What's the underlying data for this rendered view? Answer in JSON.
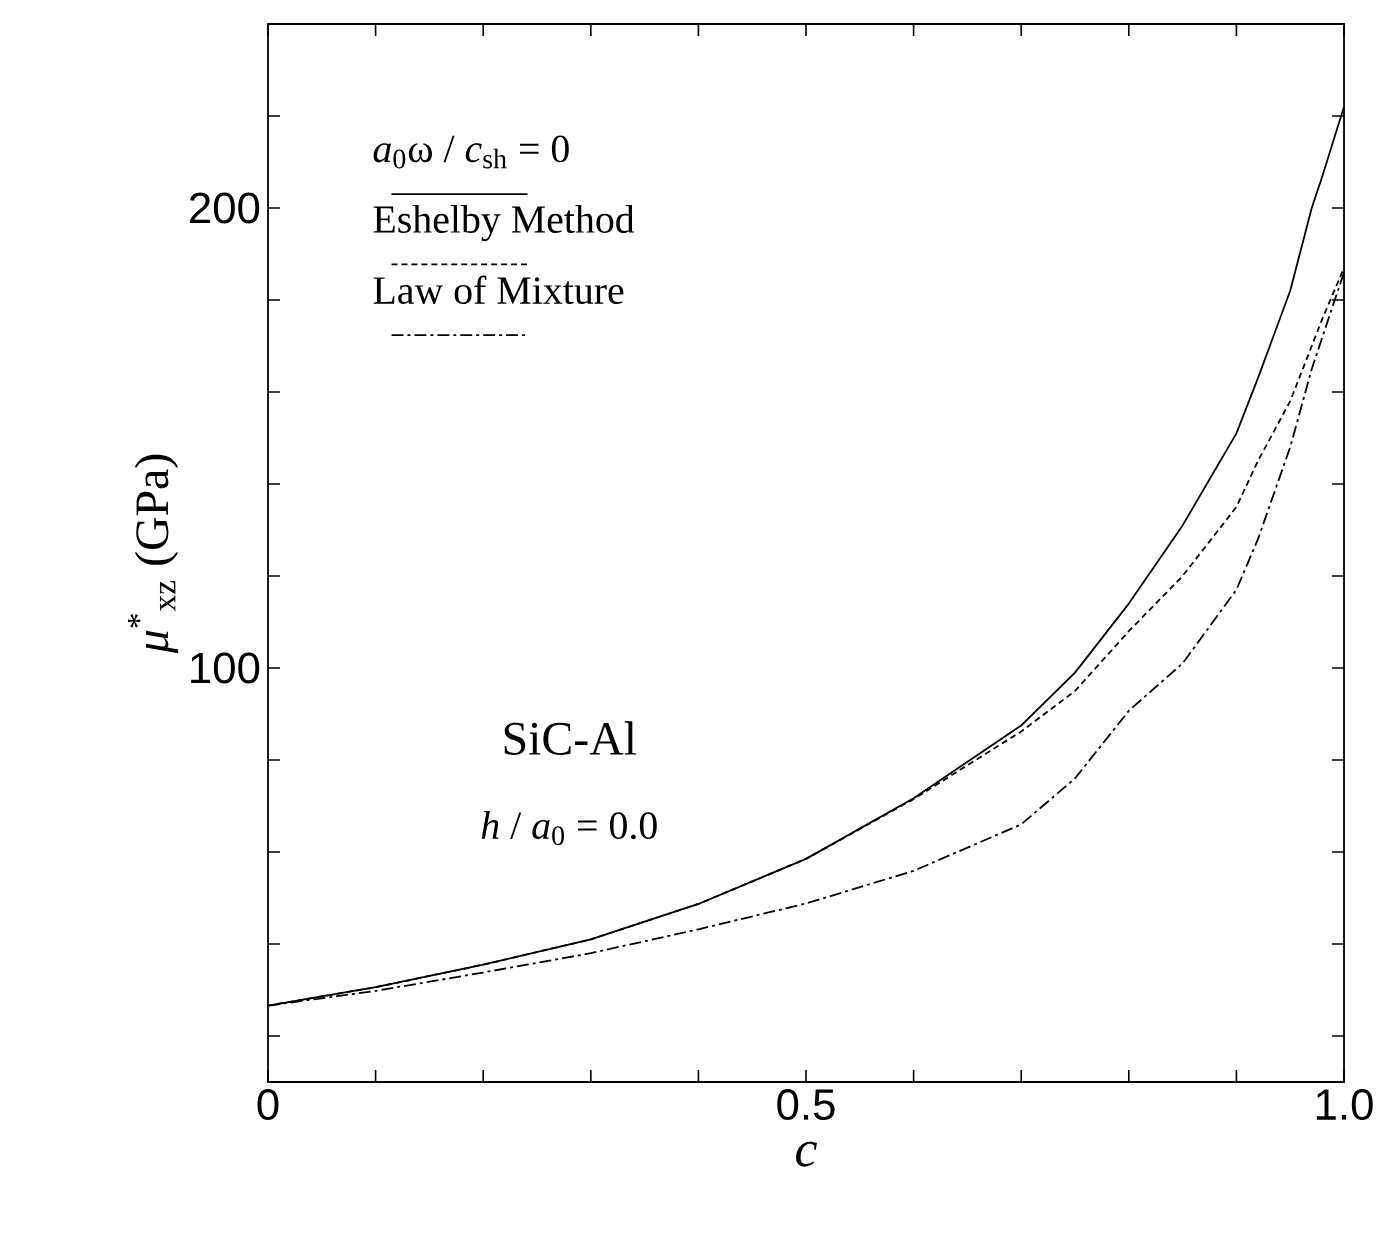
{
  "chart_data": {
    "type": "line",
    "xlabel": "*c*",
    "ylabel": "*μ*$^{*}$$_{xz}$ (GPa)",
    "x": [
      0,
      0.1,
      0.2,
      0.3,
      0.4,
      0.5,
      0.6,
      0.7,
      0.75,
      0.8,
      0.85,
      0.9,
      0.92,
      0.95,
      0.97,
      0.98,
      1.0
    ],
    "series": [
      {
        "name": "*a*$_{0}$ω / *c*$_{sh}$ = 0",
        "color": "#000000",
        "line_style": "solid",
        "values": [
          26.6,
          30.6,
          35.5,
          41,
          48.7,
          58.5,
          71.7,
          87.5,
          99,
          114,
          131,
          151,
          163,
          182,
          200,
          207,
          222
        ]
      },
      {
        "name": "Eshelby Method",
        "color": "#000000",
        "line_style": "dashed",
        "values": [
          26.6,
          30.6,
          35.5,
          41,
          48.7,
          58.5,
          71.5,
          86.2,
          95,
          108,
          120,
          135,
          145,
          158,
          170,
          176,
          187
        ]
      },
      {
        "name": "Law of Mixture",
        "color": "#000000",
        "line_style": "dashdot",
        "values": [
          26.6,
          29.8,
          33.8,
          38,
          43.2,
          48.8,
          55.9,
          66,
          76,
          90.7,
          101,
          117,
          128,
          148,
          165,
          172,
          186
        ]
      }
    ],
    "xlim": [
      0,
      1.0
    ],
    "ylim": [
      10,
      240
    ],
    "xticks": [
      0,
      {
        "value": 0.1,
        "label": null
      },
      {
        "value": 0.2,
        "label": null
      },
      {
        "value": 0.3,
        "label": null
      },
      {
        "value": 0.4,
        "label": null
      },
      0.5,
      {
        "value": 0.6,
        "label": null
      },
      {
        "value": 0.7,
        "label": null
      },
      {
        "value": 0.8,
        "label": null
      },
      {
        "value": 0.9,
        "label": null
      },
      {
        "value": 1.0,
        "label": "1.0"
      }
    ],
    "yticks": [
      {
        "value": 20,
        "label": null
      },
      {
        "value": 40,
        "label": null
      },
      {
        "value": 60,
        "label": null
      },
      {
        "value": 80,
        "label": null
      },
      100,
      {
        "value": 120,
        "label": null
      },
      {
        "value": 140,
        "label": null
      },
      {
        "value": 160,
        "label": null
      },
      {
        "value": 180,
        "label": null
      },
      200,
      {
        "value": 220,
        "label": null
      }
    ],
    "legend": "top left",
    "annotations": [
      "SiC-Al",
      "*h* / *a*$_{0}$ = 0.0"
    ]
  }
}
